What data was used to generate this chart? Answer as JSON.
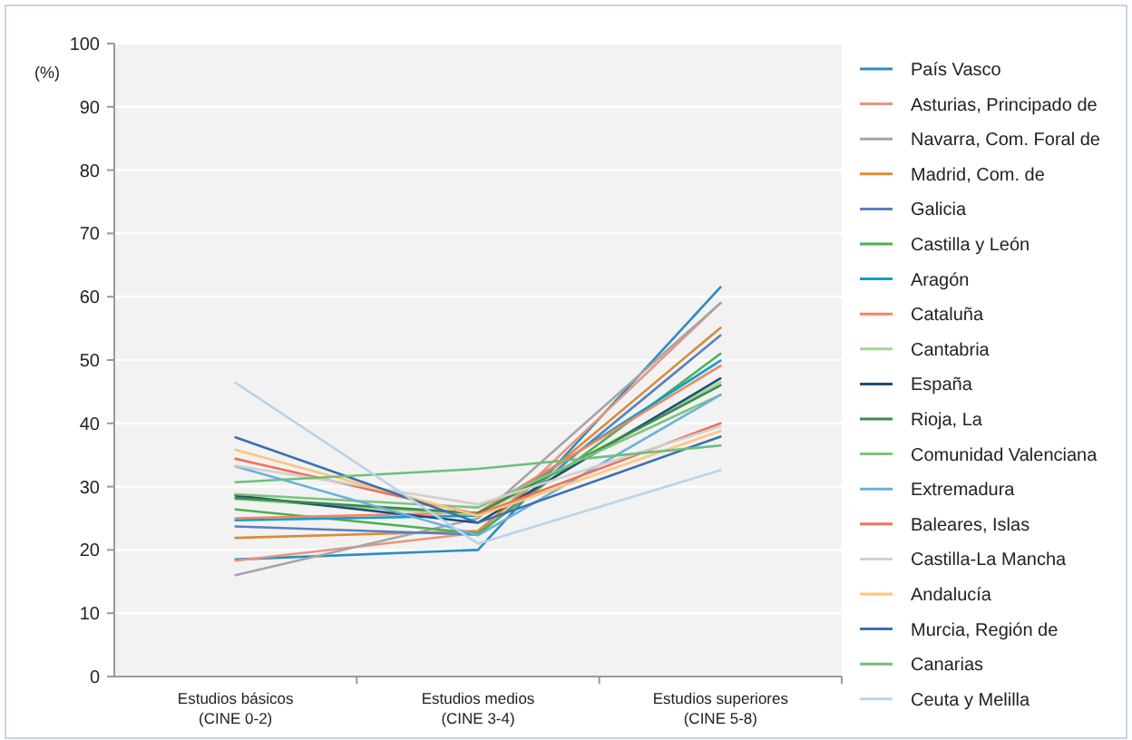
{
  "chart_data": {
    "type": "line",
    "ylabel": "(%)",
    "categories": [
      "Estudios básicos\n(CINE 0-2)",
      "Estudios medios\n(CINE 3-4)",
      "Estudios superiores\n(CINE 5-8)"
    ],
    "ylim": [
      0,
      100
    ],
    "yticks": [
      0,
      10,
      20,
      30,
      40,
      50,
      60,
      70,
      80,
      90,
      100
    ],
    "grid": "y",
    "legend": "right",
    "marker": "none",
    "line_style": "solid",
    "series": [
      {
        "name": "País Vasco",
        "color": "#2e8bc0",
        "values": [
          18.5,
          20,
          61.5
        ]
      },
      {
        "name": "Asturias, Principado de",
        "color": "#e8957e",
        "values": [
          18.3,
          22.7,
          59
        ]
      },
      {
        "name": "Navarra, Com. Foral de",
        "color": "#a5a5a5",
        "values": [
          16,
          25,
          59
        ]
      },
      {
        "name": "Madrid, Com. de",
        "color": "#d98c3a",
        "values": [
          21.9,
          23,
          55.1
        ]
      },
      {
        "name": "Galicia",
        "color": "#5a7fbf",
        "values": [
          23.7,
          22.4,
          53.9
        ]
      },
      {
        "name": "Castilla y León",
        "color": "#4caf50",
        "values": [
          26.4,
          22.6,
          51
        ]
      },
      {
        "name": "Aragón",
        "color": "#0a9fd0",
        "values": [
          24.7,
          25.4,
          49.9
        ]
      },
      {
        "name": "Cataluña",
        "color": "#f4845f",
        "values": [
          25,
          25.9,
          49.1
        ]
      },
      {
        "name": "Cantabria",
        "color": "#9fd88f",
        "values": [
          28,
          25.5,
          46.5
        ]
      },
      {
        "name": "España",
        "color": "#1f4e79",
        "values": [
          28.6,
          24.3,
          47.1
        ]
      },
      {
        "name": "Rioja, La",
        "color": "#3d8a4a",
        "values": [
          28.2,
          25.8,
          46
        ]
      },
      {
        "name": "Comunidad Valenciana",
        "color": "#7cc47c",
        "values": [
          28.8,
          26.7,
          44.5
        ]
      },
      {
        "name": "Extremadura",
        "color": "#6ab0de",
        "values": [
          33.2,
          22.3,
          44.5
        ]
      },
      {
        "name": "Baleares, Islas",
        "color": "#f0705a",
        "values": [
          34.4,
          25.6,
          40
        ]
      },
      {
        "name": "Castilla-La Mancha",
        "color": "#d0d0d0",
        "values": [
          33.3,
          27.2,
          39.5
        ]
      },
      {
        "name": "Andalucía",
        "color": "#ffc57a",
        "values": [
          35.8,
          25.4,
          38.8
        ]
      },
      {
        "name": "Murcia, Región de",
        "color": "#3d6fb0",
        "values": [
          37.8,
          24.3,
          37.9
        ]
      },
      {
        "name": "Canarias",
        "color": "#6dbf7a",
        "values": [
          30.7,
          32.8,
          36.5
        ]
      },
      {
        "name": "Ceuta y Melilla",
        "color": "#b8d4ea",
        "values": [
          46.4,
          21,
          32.6
        ]
      }
    ]
  }
}
